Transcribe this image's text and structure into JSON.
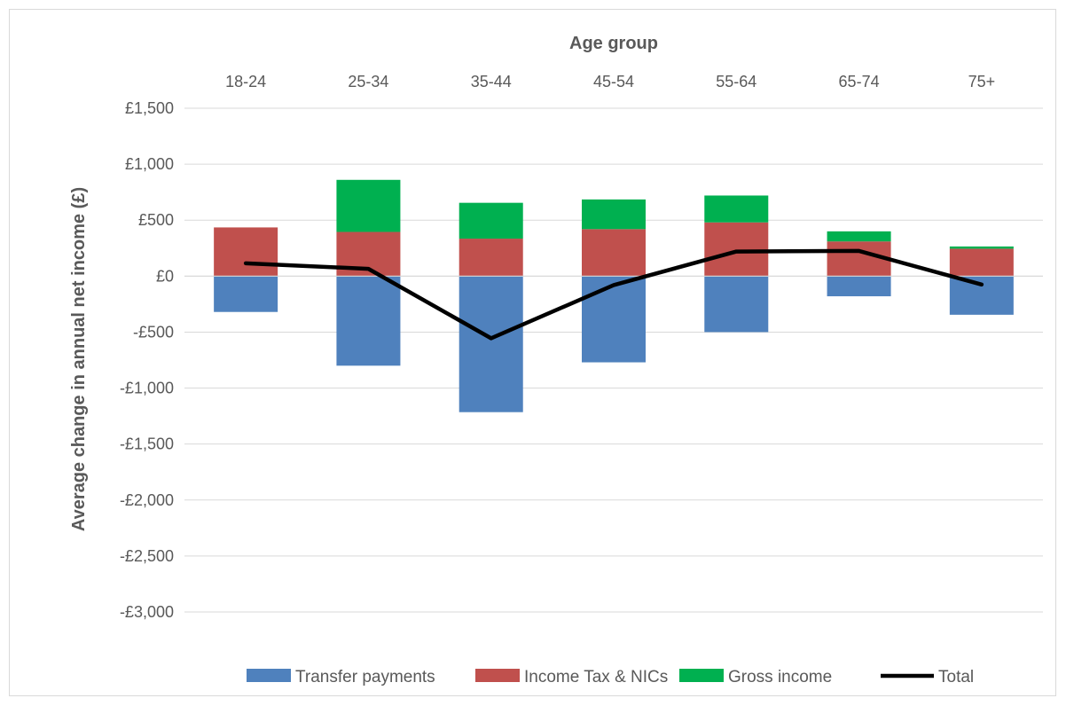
{
  "chart_data": {
    "type": "bar",
    "stacked": true,
    "x_axis_position": "top",
    "xlabel": "Age group",
    "ylabel": "Average change in annual net income (£)",
    "categories": [
      "18-24",
      "25-34",
      "35-44",
      "45-54",
      "55-64",
      "65-74",
      "75+"
    ],
    "ylim": [
      -3000,
      1500
    ],
    "yticks": [
      1500,
      1000,
      500,
      0,
      -500,
      -1000,
      -1500,
      -2000,
      -2500,
      -3000
    ],
    "ytick_labels": [
      "£1,500",
      "£1,000",
      "£500",
      "£0",
      "-£500",
      "-£1,000",
      "-£1,500",
      "-£2,000",
      "-£2,500",
      "-£3,000"
    ],
    "grid": true,
    "legend_position": "bottom",
    "series": [
      {
        "name": "Transfer payments",
        "kind": "bar",
        "color": "#4f81bd",
        "values": [
          -320,
          -800,
          -1215,
          -770,
          -500,
          -180,
          -345
        ]
      },
      {
        "name": "Income Tax & NICs",
        "kind": "bar",
        "color": "#c0504d",
        "values": [
          435,
          395,
          335,
          420,
          480,
          310,
          245
        ]
      },
      {
        "name": "Gross income",
        "kind": "bar",
        "color": "#00b050",
        "values": [
          0,
          465,
          320,
          265,
          240,
          90,
          20
        ]
      },
      {
        "name": "Total",
        "kind": "line",
        "color": "#000000",
        "values": [
          115,
          65,
          -555,
          -80,
          220,
          225,
          -75
        ]
      }
    ]
  }
}
